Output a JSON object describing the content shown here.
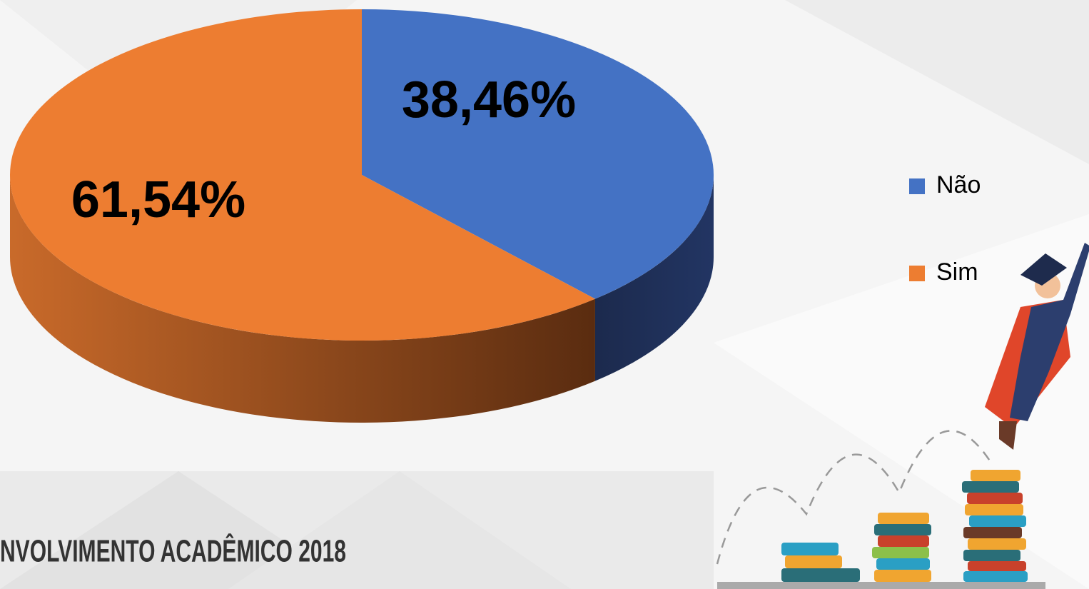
{
  "chart_data": {
    "type": "pie",
    "categories": [
      "Não",
      "Sim"
    ],
    "values": [
      38.46,
      61.54
    ],
    "value_labels": [
      "38,46%",
      "61,54%"
    ],
    "colors": [
      "#4472c4",
      "#ed7d31"
    ],
    "legend": "right"
  },
  "footer": "NVOLVIMENTO ACADÊMICO 2018"
}
